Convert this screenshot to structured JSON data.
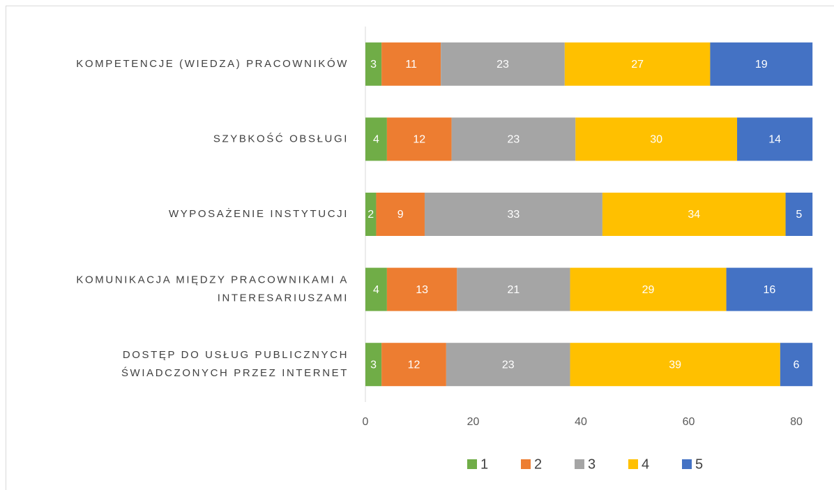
{
  "chart_data": {
    "type": "bar",
    "orientation": "horizontal",
    "stacked": true,
    "categories": [
      "KOMPETENCJE (WIEDZA) PRACOWNIKÓW",
      "SZYBKOŚĆ OBSŁUGI",
      "WYPOSAŻENIE INSTYTUCJI",
      "KOMUNIKACJA MIĘDZY PRACOWNIKAMI A\nINTERESARIUSZAMI",
      "DOSTĘP DO USŁUG PUBLICZNYCH\nŚWIADCZONYCH PRZEZ INTERNET"
    ],
    "series": [
      {
        "name": "1",
        "color": "#70ad47",
        "values": [
          3,
          4,
          2,
          4,
          3
        ]
      },
      {
        "name": "2",
        "color": "#ed7d31",
        "values": [
          11,
          12,
          9,
          13,
          12
        ]
      },
      {
        "name": "3",
        "color": "#a5a5a5",
        "values": [
          23,
          23,
          33,
          21,
          23
        ]
      },
      {
        "name": "4",
        "color": "#ffc000",
        "values": [
          27,
          30,
          34,
          29,
          39
        ]
      },
      {
        "name": "5",
        "color": "#4472c4",
        "values": [
          19,
          14,
          5,
          16,
          6
        ]
      }
    ],
    "xlim": [
      0,
      80
    ],
    "xticks": [
      0,
      20,
      40,
      60,
      80
    ],
    "legend": "bottom",
    "data_labels": true
  }
}
